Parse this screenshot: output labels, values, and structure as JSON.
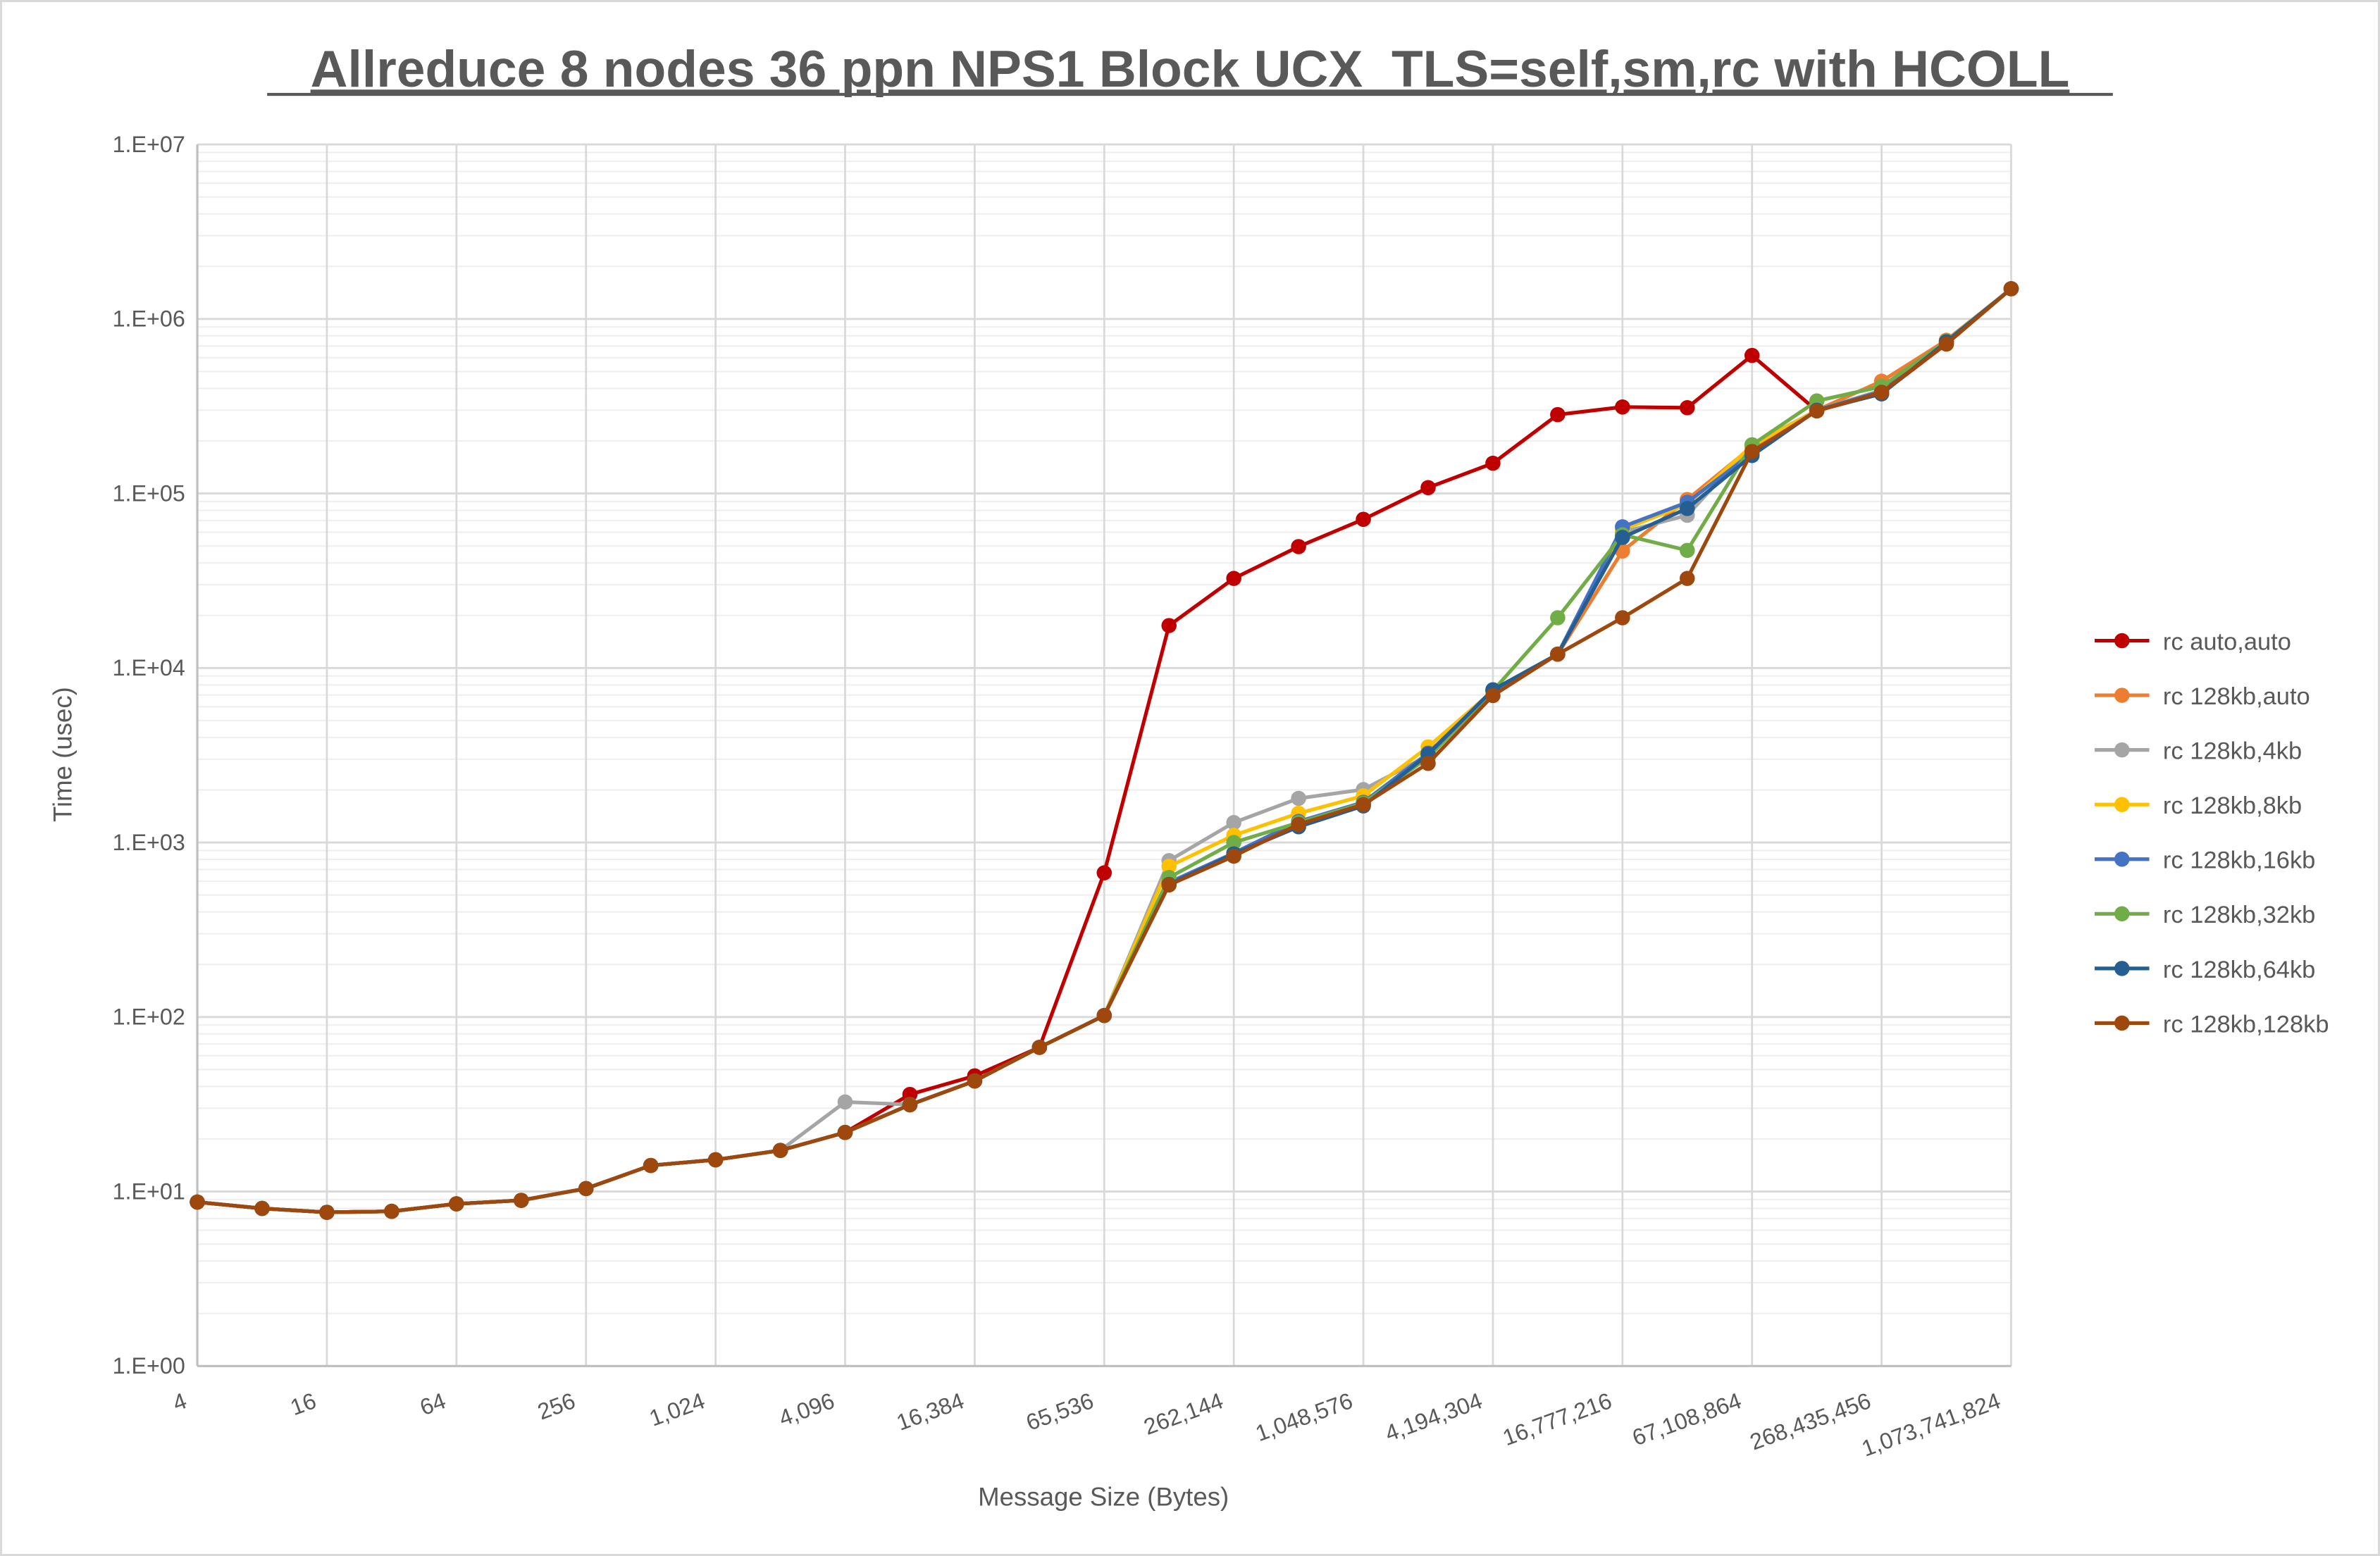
{
  "chart_data": {
    "type": "line",
    "title": "Allreduce 8 nodes 36 ppn NPS1 Block UCX_TLS=self,sm,rc with HCOLL",
    "xlabel": "Message Size (Bytes)",
    "ylabel": "Time (usec)",
    "yscale": "log",
    "xscale": "log2",
    "ylim": [
      1,
      10000000
    ],
    "grid": true,
    "legend_position": "right",
    "y_tick_labels": [
      "1.E+00",
      "1.E+01",
      "1.E+02",
      "1.E+03",
      "1.E+04",
      "1.E+05",
      "1.E+06",
      "1.E+07"
    ],
    "x_tick_labels": [
      "4",
      "16",
      "64",
      "256",
      "1,024",
      "4,096",
      "16,384",
      "65,536",
      "262,144",
      "1,048,576",
      "4,194,304",
      "16,777,216",
      "67,108,864",
      "268,435,456",
      "1,073,741,824"
    ],
    "x": [
      4,
      8,
      16,
      32,
      64,
      128,
      256,
      512,
      1024,
      2048,
      4096,
      8192,
      16384,
      32768,
      65536,
      131072,
      262144,
      524288,
      1048576,
      2097152,
      4194304,
      8388608,
      16777216,
      33554432,
      67108864,
      134217728,
      268435456,
      536870912,
      1073741824
    ],
    "series": [
      {
        "name": "rc auto,auto",
        "color": "#C00000",
        "values": [
          8.7,
          8.0,
          7.6,
          7.7,
          8.5,
          8.9,
          10.4,
          14.1,
          15.2,
          17.2,
          21.8,
          36,
          46,
          67,
          670,
          17500,
          32600,
          49600,
          71100,
          108000,
          149000,
          283000,
          313000,
          310000,
          618000,
          298000,
          375000,
          720000,
          1490000
        ]
      },
      {
        "name": "rc 128kb,auto",
        "color": "#ED7D31",
        "values": [
          8.7,
          8.0,
          7.6,
          7.7,
          8.5,
          8.9,
          10.4,
          14.1,
          15.2,
          17.2,
          21.8,
          31.4,
          43,
          67,
          102,
          580,
          860,
          1250,
          1680,
          3100,
          7400,
          12000,
          46800,
          92300,
          185000,
          300000,
          440000,
          755000,
          1490000
        ]
      },
      {
        "name": "rc 128kb,4kb",
        "color": "#A5A5A5",
        "values": [
          8.7,
          8.0,
          7.6,
          7.7,
          8.5,
          8.9,
          10.4,
          14.1,
          15.2,
          17.2,
          32.6,
          31.5,
          43,
          67,
          102,
          787,
          1300,
          1790,
          2010,
          3150,
          7400,
          12000,
          60000,
          75000,
          190000,
          300000,
          390000,
          740000,
          1490000
        ]
      },
      {
        "name": "rc 128kb,8kb",
        "color": "#FFC000",
        "values": [
          8.7,
          8.0,
          7.6,
          7.7,
          8.5,
          8.9,
          10.4,
          14.1,
          15.2,
          17.2,
          21.8,
          31.4,
          43,
          67,
          102,
          730,
          1100,
          1470,
          1850,
          3530,
          7400,
          12000,
          62000,
          87000,
          188000,
          300000,
          385000,
          740000,
          1490000
        ]
      },
      {
        "name": "rc 128kb,16kb",
        "color": "#4472C4",
        "values": [
          8.7,
          8.0,
          7.6,
          7.7,
          8.5,
          8.9,
          10.4,
          14.1,
          15.2,
          17.2,
          21.8,
          31.4,
          43,
          67,
          102,
          590,
          870,
          1320,
          1700,
          3250,
          7400,
          12000,
          64400,
          89000,
          170000,
          300000,
          385000,
          740000,
          1490000
        ]
      },
      {
        "name": "rc 128kb,32kb",
        "color": "#70AD47",
        "values": [
          8.7,
          8.0,
          7.6,
          7.7,
          8.5,
          8.9,
          10.4,
          14.1,
          15.2,
          17.2,
          21.8,
          31.4,
          43,
          67,
          102,
          630,
          1000,
          1300,
          1680,
          3070,
          7400,
          19400,
          58000,
          47200,
          190000,
          339000,
          410000,
          745000,
          1490000
        ]
      },
      {
        "name": "rc 128kb,64kb",
        "color": "#255E91",
        "values": [
          8.7,
          8.0,
          7.6,
          7.7,
          8.5,
          8.9,
          10.4,
          14.1,
          15.2,
          17.2,
          21.8,
          31.4,
          43,
          67,
          102,
          575,
          860,
          1230,
          1620,
          3200,
          7500,
          12000,
          56000,
          82000,
          165000,
          300000,
          372000,
          740000,
          1490000
        ]
      },
      {
        "name": "rc 128kb,128kb",
        "color": "#9E480E",
        "values": [
          8.7,
          8.0,
          7.6,
          7.7,
          8.5,
          8.9,
          10.4,
          14.1,
          15.2,
          17.2,
          21.8,
          31.4,
          43,
          67,
          102,
          571,
          835,
          1270,
          1650,
          2840,
          6950,
          12000,
          19400,
          32600,
          174000,
          297000,
          380000,
          718000,
          1490000
        ]
      }
    ]
  }
}
